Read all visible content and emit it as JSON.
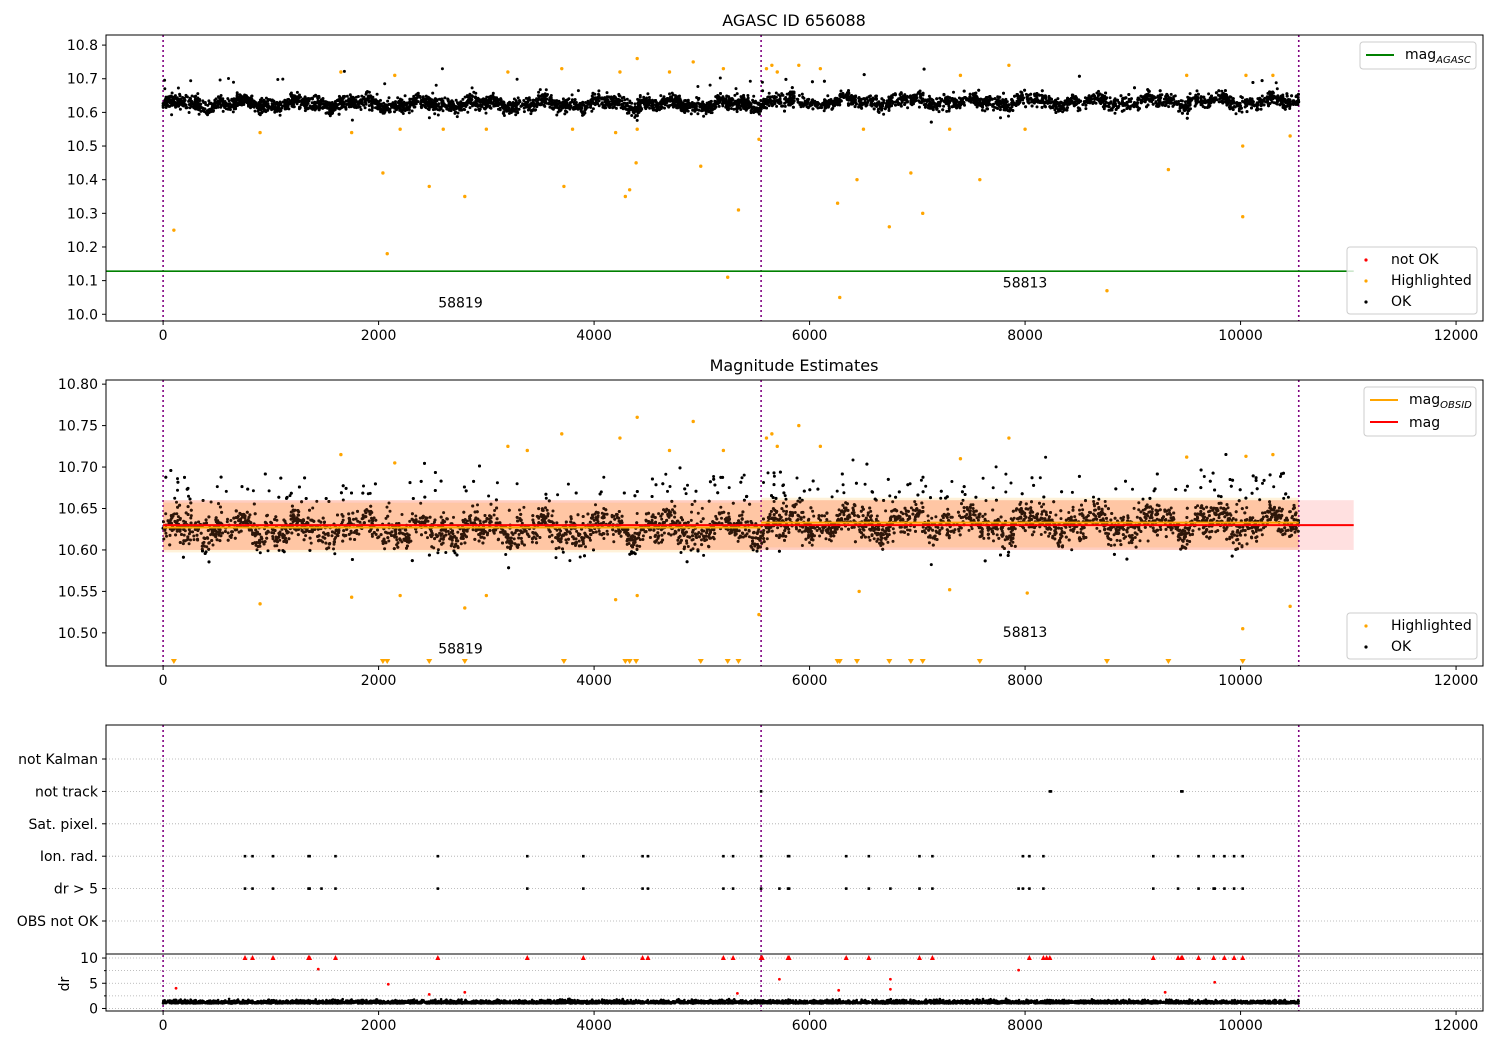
{
  "chart_data": [
    {
      "type": "scatter",
      "title": "AGASC ID 656088",
      "xlim": [
        -530,
        12250
      ],
      "ylim": [
        9.98,
        10.83
      ],
      "xticks": [
        "0",
        "2000",
        "4000",
        "6000",
        "8000",
        "10000",
        "12000"
      ],
      "xtick_values": [
        0,
        2000,
        4000,
        6000,
        8000,
        10000,
        12000
      ],
      "yticks": [
        "10.0",
        "10.1",
        "10.2",
        "10.3",
        "10.4",
        "10.5",
        "10.6",
        "10.7",
        "10.8"
      ],
      "ytick_values": [
        10.0,
        10.1,
        10.2,
        10.3,
        10.4,
        10.5,
        10.6,
        10.7,
        10.8
      ],
      "obsid_boundaries": [
        0,
        5550,
        10540
      ],
      "obsid_labels": [
        {
          "text": "58819",
          "x": 2760,
          "y": 10.02
        },
        {
          "text": "58813",
          "x": 8000,
          "y": 10.08
        }
      ],
      "agasc_mag": 10.128,
      "series": [
        {
          "name": "not OK",
          "color": "#ff0000",
          "points": []
        },
        {
          "name": "Highlighted",
          "color": "#ffa500",
          "points": [
            [
              100,
              10.25
            ],
            [
              2040,
              10.42
            ],
            [
              2080,
              10.18
            ],
            [
              2470,
              10.38
            ],
            [
              2800,
              10.35
            ],
            [
              3720,
              10.38
            ],
            [
              4290,
              10.35
            ],
            [
              4330,
              10.37
            ],
            [
              4390,
              10.45
            ],
            [
              4990,
              10.44
            ],
            [
              5240,
              10.11
            ],
            [
              5340,
              10.31
            ],
            [
              5530,
              10.52
            ],
            [
              6260,
              10.33
            ],
            [
              6280,
              10.05
            ],
            [
              6440,
              10.4
            ],
            [
              6740,
              10.26
            ],
            [
              6940,
              10.42
            ],
            [
              7050,
              10.3
            ],
            [
              7580,
              10.4
            ],
            [
              8760,
              10.07
            ],
            [
              9330,
              10.43
            ],
            [
              10020,
              10.5
            ],
            [
              10020,
              10.29
            ],
            [
              10460,
              10.53
            ],
            [
              1650,
              10.72
            ],
            [
              2150,
              10.71
            ],
            [
              3200,
              10.72
            ],
            [
              3700,
              10.73
            ],
            [
              4240,
              10.72
            ],
            [
              4400,
              10.76
            ],
            [
              4700,
              10.72
            ],
            [
              4920,
              10.75
            ],
            [
              5200,
              10.73
            ],
            [
              5600,
              10.73
            ],
            [
              5650,
              10.74
            ],
            [
              5700,
              10.72
            ],
            [
              5900,
              10.74
            ],
            [
              6100,
              10.73
            ],
            [
              7400,
              10.71
            ],
            [
              7850,
              10.74
            ],
            [
              9500,
              10.71
            ],
            [
              10050,
              10.71
            ],
            [
              10300,
              10.71
            ],
            [
              900,
              10.54
            ],
            [
              1750,
              10.54
            ],
            [
              2200,
              10.55
            ],
            [
              2600,
              10.55
            ],
            [
              3000,
              10.55
            ],
            [
              3800,
              10.55
            ],
            [
              4200,
              10.54
            ],
            [
              4400,
              10.55
            ],
            [
              6500,
              10.55
            ],
            [
              7300,
              10.55
            ],
            [
              8000,
              10.55
            ]
          ]
        },
        {
          "name": "OK",
          "color": "#000000",
          "clusters": [
            {
              "x_start": 0,
              "x_end": 5550,
              "center": 10.625,
              "spread": 0.03,
              "count": 2800
            },
            {
              "x_start": 5550,
              "x_end": 10540,
              "center": 10.632,
              "spread": 0.03,
              "count": 2600
            }
          ]
        }
      ],
      "legend_upper": [
        "magAGASC"
      ],
      "legend_lower": [
        "not OK",
        "Highlighted",
        "OK"
      ]
    },
    {
      "type": "scatter",
      "title": "Magnitude Estimates",
      "xlim": [
        -530,
        12250
      ],
      "ylim": [
        10.46,
        10.805
      ],
      "xticks": [
        "0",
        "2000",
        "4000",
        "6000",
        "8000",
        "10000",
        "12000"
      ],
      "xtick_values": [
        0,
        2000,
        4000,
        6000,
        8000,
        10000,
        12000
      ],
      "yticks": [
        "10.50",
        "10.55",
        "10.60",
        "10.65",
        "10.70",
        "10.75",
        "10.80"
      ],
      "ytick_values": [
        10.5,
        10.55,
        10.6,
        10.65,
        10.7,
        10.75,
        10.8
      ],
      "obsid_boundaries": [
        0,
        5550,
        10540
      ],
      "obsid_labels": [
        {
          "text": "58819",
          "x": 2760,
          "y": 10.475
        },
        {
          "text": "58813",
          "x": 8000,
          "y": 10.495
        }
      ],
      "mag": 10.63,
      "mag_band": [
        10.6,
        10.66
      ],
      "mag_obsid": [
        {
          "x_start": 0,
          "x_end": 5550,
          "value": 10.627
        },
        {
          "x_start": 5550,
          "x_end": 10540,
          "value": 10.633
        }
      ],
      "offscale_markers_x": [
        100,
        2040,
        2080,
        2470,
        2800,
        3720,
        4290,
        4330,
        4390,
        4990,
        5240,
        5340,
        6260,
        6280,
        6440,
        6740,
        6940,
        7050,
        7580,
        8760,
        9330,
        10020
      ],
      "series": [
        {
          "name": "Highlighted",
          "color": "#ffa500",
          "points": [
            [
              1650,
              10.715
            ],
            [
              2150,
              10.705
            ],
            [
              3200,
              10.725
            ],
            [
              3380,
              10.72
            ],
            [
              3700,
              10.74
            ],
            [
              4240,
              10.735
            ],
            [
              4400,
              10.76
            ],
            [
              4700,
              10.72
            ],
            [
              4920,
              10.755
            ],
            [
              5200,
              10.72
            ],
            [
              5600,
              10.735
            ],
            [
              5650,
              10.74
            ],
            [
              5700,
              10.725
            ],
            [
              5900,
              10.75
            ],
            [
              6100,
              10.725
            ],
            [
              7400,
              10.71
            ],
            [
              7850,
              10.735
            ],
            [
              9500,
              10.712
            ],
            [
              10050,
              10.713
            ],
            [
              10300,
              10.715
            ],
            [
              900,
              10.535
            ],
            [
              1750,
              10.543
            ],
            [
              2200,
              10.545
            ],
            [
              2800,
              10.53
            ],
            [
              3000,
              10.545
            ],
            [
              4200,
              10.54
            ],
            [
              4400,
              10.545
            ],
            [
              5530,
              10.522
            ],
            [
              6460,
              10.55
            ],
            [
              7300,
              10.552
            ],
            [
              8020,
              10.548
            ],
            [
              10020,
              10.505
            ],
            [
              10460,
              10.532
            ]
          ]
        },
        {
          "name": "OK",
          "color": "#000000",
          "clusters": [
            {
              "x_start": 0,
              "x_end": 5550,
              "center": 10.625,
              "spread": 0.025,
              "count": 2800
            },
            {
              "x_start": 5550,
              "x_end": 10540,
              "center": 10.632,
              "spread": 0.025,
              "count": 2600
            }
          ]
        }
      ],
      "legend_upper": [
        "magOBSID",
        "mag"
      ],
      "legend_lower": [
        "Highlighted",
        "OK"
      ]
    },
    {
      "type": "scatter",
      "title": "",
      "xlim": [
        -530,
        12250
      ],
      "xticks": [
        "0",
        "2000",
        "4000",
        "6000",
        "8000",
        "10000",
        "12000"
      ],
      "xtick_values": [
        0,
        2000,
        4000,
        6000,
        8000,
        10000,
        12000
      ],
      "obsid_boundaries": [
        0,
        5550,
        10540
      ],
      "flag_rows": [
        "not Kalman",
        "not track",
        "Sat. pixel.",
        "Ion. rad.",
        "dr > 5",
        "OBS not OK"
      ],
      "flag_points": {
        "not track": [
          5550,
          8230,
          8240,
          9450,
          9460
        ],
        "Ion. rad.": [
          760,
          830,
          1020,
          1350,
          1360,
          1600,
          2550,
          3380,
          3900,
          4450,
          4500,
          5200,
          5290,
          5550,
          5800,
          5810,
          6340,
          6550,
          7020,
          7140,
          7980,
          8040,
          8170,
          9190,
          9420,
          9610,
          9750,
          9850,
          9940,
          10020
        ],
        "dr > 5": [
          760,
          830,
          1020,
          1350,
          1360,
          1470,
          1600,
          2550,
          3380,
          3900,
          4450,
          4500,
          5200,
          5290,
          5550,
          5720,
          5800,
          5810,
          6340,
          6550,
          6750,
          7020,
          7140,
          7940,
          7980,
          8040,
          8170,
          9190,
          9420,
          9610,
          9750,
          9760,
          9850,
          9940,
          10020
        ]
      },
      "dr": {
        "ylabel": "dr",
        "ylim": [
          -0.5,
          10.8
        ],
        "yticks": [
          "0",
          "5",
          "10"
        ],
        "ytick_values": [
          0,
          5,
          10
        ],
        "clipped_x": [
          760,
          830,
          1020,
          1350,
          1360,
          1600,
          2550,
          3380,
          3900,
          4450,
          4500,
          5200,
          5290,
          5550,
          5560,
          5800,
          5810,
          6340,
          6550,
          7020,
          7140,
          8040,
          8170,
          8200,
          8230,
          9190,
          9420,
          9450,
          9460,
          9610,
          9750,
          9850,
          9940,
          10020
        ],
        "outliers": [
          [
            120,
            4.0
          ],
          [
            1440,
            7.8
          ],
          [
            2090,
            4.8
          ],
          [
            2470,
            2.8
          ],
          [
            2800,
            3.2
          ],
          [
            5330,
            3.0
          ],
          [
            5720,
            5.8
          ],
          [
            6270,
            3.6
          ],
          [
            6750,
            5.8
          ],
          [
            6750,
            3.8
          ],
          [
            7940,
            7.6
          ],
          [
            9300,
            3.2
          ],
          [
            9760,
            5.2
          ]
        ],
        "baseline": {
          "x_start": 0,
          "x_end": 10540,
          "center": 1.0,
          "spread": 0.55,
          "count": 5400
        }
      }
    }
  ]
}
